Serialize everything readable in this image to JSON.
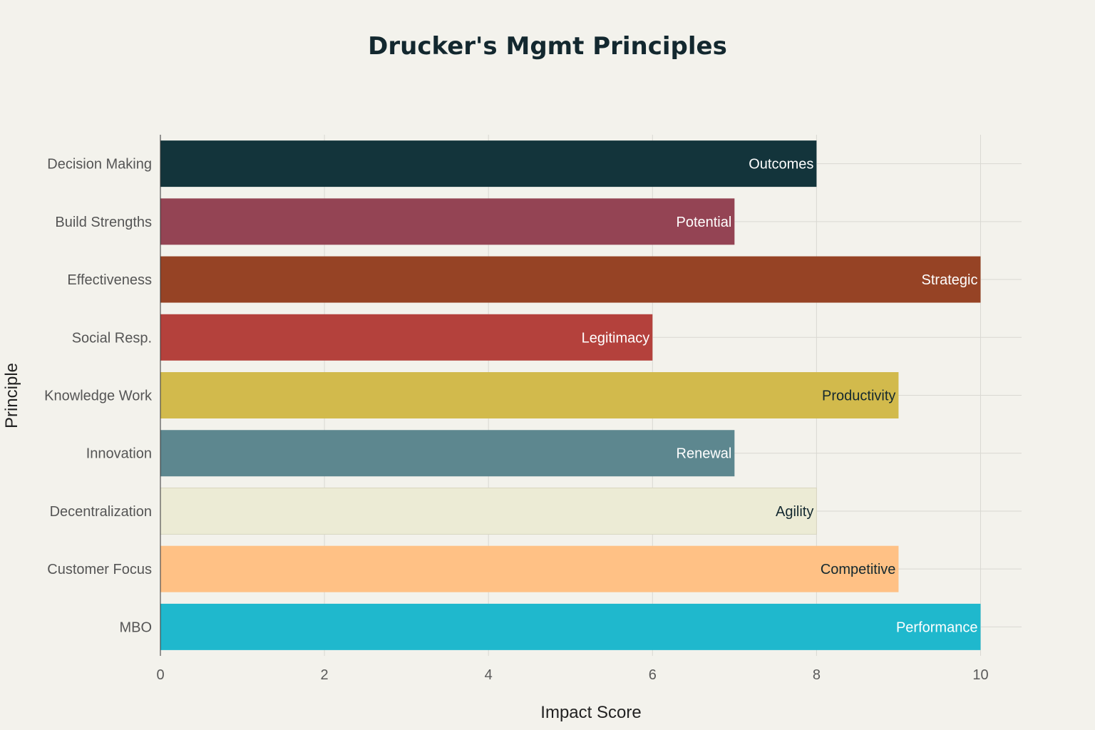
{
  "chart_data": {
    "type": "bar",
    "orientation": "horizontal",
    "title": "Drucker's Mgmt Principles",
    "xlabel": "Impact Score",
    "ylabel": "Principle",
    "xlim": [
      0,
      10.5
    ],
    "xticks": [
      0,
      2,
      4,
      6,
      8,
      10
    ],
    "grid": true,
    "categories": [
      "Decision Making",
      "Build Strengths",
      "Effectiveness",
      "Social Resp.",
      "Knowledge Work",
      "Innovation",
      "Decentralization",
      "Customer Focus",
      "MBO"
    ],
    "values": [
      8,
      7,
      10,
      6,
      9,
      7,
      8,
      9,
      10
    ],
    "bar_labels": [
      "Outcomes",
      "Potential",
      "Strategic",
      "Legitimacy",
      "Productivity",
      "Renewal",
      "Agility",
      "Competitive",
      "Performance"
    ],
    "colors": [
      "#13343b",
      "#944454",
      "#964325",
      "#b4413c",
      "#d2ba4c",
      "#5d878f",
      "#ecebd5",
      "#ffc185",
      "#1fb8cd"
    ],
    "label_colors": [
      "#ffffff",
      "#ffffff",
      "#ffffff",
      "#ffffff",
      "#13282f",
      "#ffffff",
      "#13282f",
      "#13282f",
      "#ffffff"
    ]
  }
}
